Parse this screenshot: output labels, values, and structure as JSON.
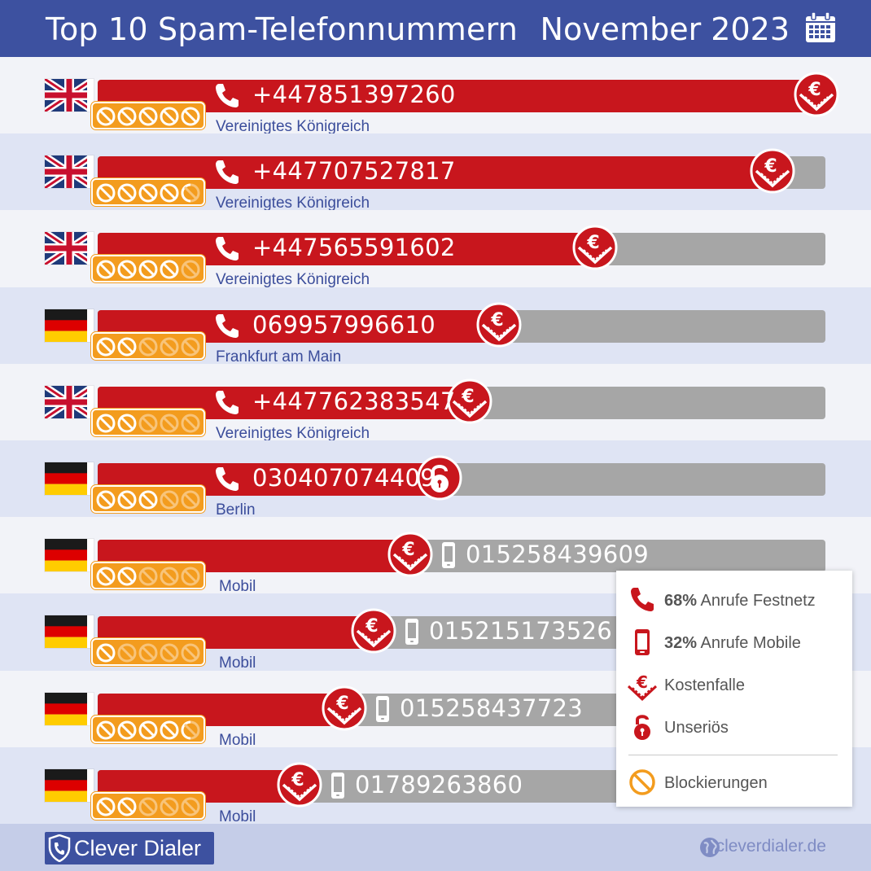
{
  "header": {
    "title": "Top 10 Spam-Telefonnummern",
    "month": "November 2023",
    "icon": "calendar-icon"
  },
  "colors": {
    "header_bg": "#3d51a0",
    "bar_red": "#c8161d",
    "track_grey": "#a6a6a6",
    "block_orange": "#f39c1e",
    "location_blue": "#3b4d9b"
  },
  "chart_data": {
    "type": "bar",
    "title": "Top 10 Spam-Telefonnummern",
    "value_scale": [
      0,
      1
    ],
    "rows": [
      {
        "rank": 1,
        "number": "+447851397260",
        "location": "Vereinigtes Königreich",
        "flag": "uk",
        "line": "festnetz",
        "category": "kostenfalle",
        "value": 1.0,
        "blocks": 5
      },
      {
        "rank": 2,
        "number": "+447707527817",
        "location": "Vereinigtes Königreich",
        "flag": "uk",
        "line": "festnetz",
        "category": "kostenfalle",
        "value": 0.94,
        "blocks": 4.5
      },
      {
        "rank": 3,
        "number": "+447565591602",
        "location": "Vereinigtes Königreich",
        "flag": "uk",
        "line": "festnetz",
        "category": "kostenfalle",
        "value": 0.7,
        "blocks": 4
      },
      {
        "rank": 4,
        "number": "069957996610",
        "location": "Frankfurt am Main",
        "flag": "de",
        "line": "festnetz",
        "category": "kostenfalle",
        "value": 0.57,
        "blocks": 2
      },
      {
        "rank": 5,
        "number": "+447762383547",
        "location": "Vereinigtes Königreich",
        "flag": "uk",
        "line": "festnetz",
        "category": "kostenfalle",
        "value": 0.53,
        "blocks": 2
      },
      {
        "rank": 6,
        "number": "030407074409",
        "location": "Berlin",
        "flag": "de",
        "line": "festnetz",
        "category": "unserioes",
        "value": 0.49,
        "blocks": 3
      },
      {
        "rank": 7,
        "number": "015258439609",
        "location": "Mobil",
        "flag": "de",
        "line": "mobil",
        "category": "kostenfalle",
        "value": 0.45,
        "blocks": 2
      },
      {
        "rank": 8,
        "number": "015215173526",
        "location": "Mobil",
        "flag": "de",
        "line": "mobil",
        "category": "kostenfalle",
        "value": 0.4,
        "blocks": 1
      },
      {
        "rank": 9,
        "number": "015258437723",
        "location": "Mobil",
        "flag": "de",
        "line": "mobil",
        "category": "kostenfalle",
        "value": 0.36,
        "blocks": 4.5
      },
      {
        "rank": 10,
        "number": "01789263860",
        "location": "Mobil",
        "flag": "de",
        "line": "mobil",
        "category": "kostenfalle",
        "value": 0.3,
        "blocks": 2
      }
    ]
  },
  "legend": {
    "festnetz_pct": "68%",
    "festnetz_label": "Anrufe Festnetz",
    "mobile_pct": "32%",
    "mobile_label": "Anrufe Mobile",
    "kostenfalle": "Kostenfalle",
    "unserioes": "Unseriös",
    "blockierungen": "Blockierungen"
  },
  "footer": {
    "brand": "Clever Dialer",
    "site": "cleverdialer.de"
  }
}
